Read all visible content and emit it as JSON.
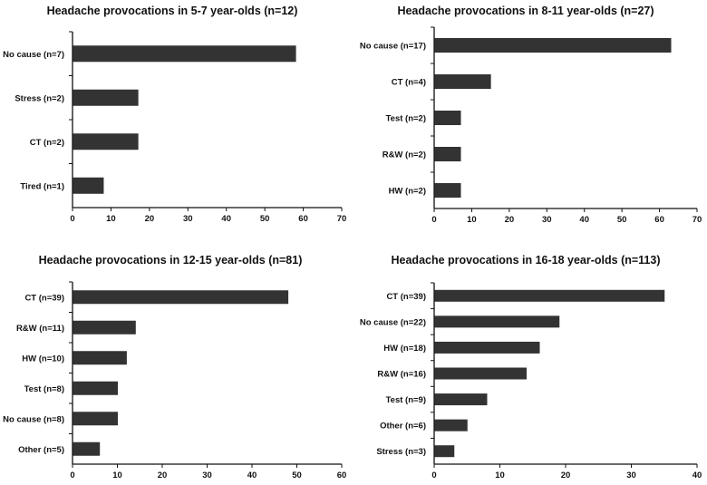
{
  "chart_data": [
    {
      "type": "bar",
      "orientation": "horizontal",
      "title": "Headache provocations in 5-7 year-olds (n=12)",
      "categories": [
        "No cause (n=7)",
        "Stress (n=2)",
        "CT (n=2)",
        "Tired (n=1)"
      ],
      "values": [
        58,
        17,
        17,
        8
      ],
      "xlim": [
        0,
        70
      ],
      "xticks": [
        0,
        10,
        20,
        30,
        40,
        50,
        60,
        70
      ],
      "grid": false,
      "bar_color": "#333333"
    },
    {
      "type": "bar",
      "orientation": "horizontal",
      "title": "Headache provocations in 8-11 year-olds (n=27)",
      "categories": [
        "No cause (n=17)",
        "CT (n=4)",
        "Test (n=2)",
        "R&W (n=2)",
        "HW (n=2)"
      ],
      "values": [
        63,
        15,
        7,
        7,
        7
      ],
      "xlim": [
        0,
        70
      ],
      "xticks": [
        0,
        10,
        20,
        30,
        40,
        50,
        60,
        70
      ],
      "grid": false,
      "bar_color": "#333333"
    },
    {
      "type": "bar",
      "orientation": "horizontal",
      "title": "Headache provocations in 12-15 year-olds (n=81)",
      "categories": [
        "CT (n=39)",
        "R&W (n=11)",
        "HW (n=10)",
        "Test (n=8)",
        "No cause (n=8)",
        "Other (n=5)"
      ],
      "values": [
        48,
        14,
        12,
        10,
        10,
        6
      ],
      "xlim": [
        0,
        60
      ],
      "xticks": [
        0,
        10,
        20,
        30,
        40,
        50,
        60
      ],
      "grid": false,
      "bar_color": "#333333"
    },
    {
      "type": "bar",
      "orientation": "horizontal",
      "title": "Headache provocations in 16-18 year-olds (n=113)",
      "categories": [
        "CT (n=39)",
        "No cause (n=22)",
        "HW (n=18)",
        "R&W (n=16)",
        "Test (n=9)",
        "Other (n=6)",
        "Stress (n=3)"
      ],
      "values": [
        35,
        19,
        16,
        14,
        8,
        5,
        3
      ],
      "xlim": [
        0,
        40
      ],
      "xticks": [
        0,
        10,
        20,
        30,
        40
      ],
      "grid": false,
      "bar_color": "#333333"
    }
  ]
}
